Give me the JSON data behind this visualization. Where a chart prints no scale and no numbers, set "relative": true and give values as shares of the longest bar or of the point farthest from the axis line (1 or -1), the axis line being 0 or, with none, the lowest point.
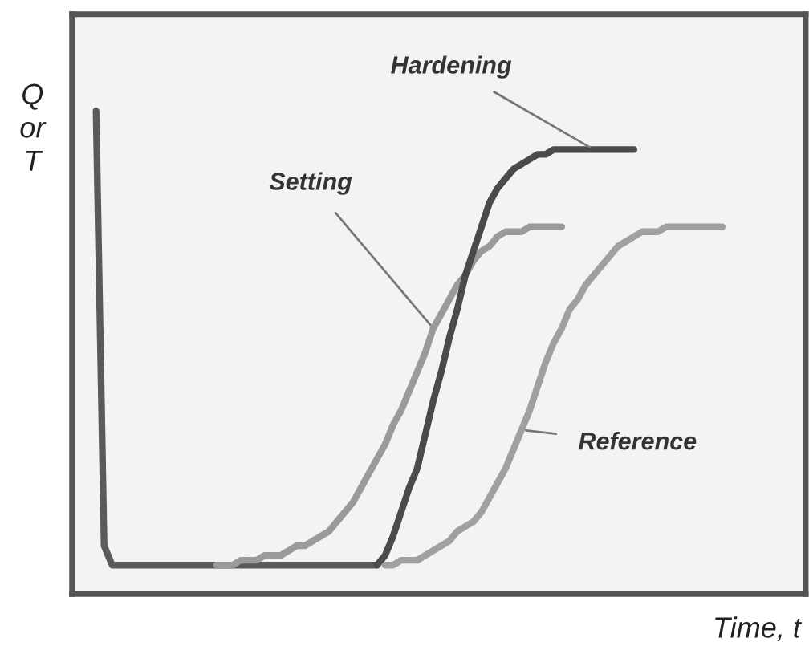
{
  "chart_data": {
    "type": "line",
    "relative": true,
    "xlabel": "Time, t",
    "ylabel": "Q\nor\nT",
    "categories": [
      null,
      null,
      null,
      null,
      null,
      null,
      null,
      null,
      null,
      null,
      null,
      null,
      null,
      null,
      null,
      null,
      null,
      null,
      null,
      null,
      null,
      null,
      null,
      null,
      null,
      null,
      null,
      null,
      null,
      null,
      null,
      null,
      null,
      null,
      null,
      null,
      null,
      null,
      null,
      null,
      null,
      null,
      null,
      null,
      null,
      null,
      null,
      null,
      null,
      null,
      null,
      null,
      null,
      null,
      null,
      null,
      null,
      null,
      null,
      null,
      null,
      null,
      null,
      null,
      null,
      null,
      null,
      null,
      null,
      null,
      null,
      null,
      null,
      null,
      null,
      null,
      null,
      null,
      null,
      null,
      null,
      null,
      null,
      null,
      null,
      null,
      null,
      null,
      null
    ],
    "series": [
      {
        "color": "#5a5a5a",
        "values": [
          1.0,
          0.1,
          0.06,
          0.06,
          0.06,
          0.06,
          0.06,
          0.06,
          0.06,
          0.06,
          0.06,
          0.06,
          0.06,
          0.06,
          0.06,
          0.06,
          0.06,
          0.06,
          0.06,
          0.06,
          0.06,
          0.06,
          0.06,
          0.06,
          0.06,
          0.06,
          0.06,
          0.06,
          0.06,
          0.06,
          0.06,
          0.06,
          0.06,
          0.06,
          0.06,
          0.06,
          null,
          null,
          null,
          null,
          null,
          null,
          null,
          null,
          null,
          null,
          null,
          null,
          null,
          null,
          null,
          null,
          null,
          null,
          null,
          null,
          null,
          null,
          null,
          null,
          null,
          null,
          null,
          null,
          null,
          null,
          null,
          null,
          null,
          null,
          null,
          null,
          null,
          null,
          null,
          null,
          null,
          null,
          null,
          null,
          null,
          null,
          null,
          null,
          null,
          null,
          null,
          null,
          null
        ]
      },
      {
        "name": "Setting",
        "color": "#9a9a9a",
        "values": [
          null,
          null,
          null,
          null,
          null,
          null,
          null,
          null,
          null,
          null,
          null,
          null,
          null,
          null,
          null,
          0.06,
          0.06,
          0.06,
          0.07,
          0.07,
          0.07,
          0.08,
          0.08,
          0.08,
          0.09,
          0.1,
          0.1,
          0.11,
          0.12,
          0.13,
          0.15,
          0.17,
          0.19,
          0.22,
          0.25,
          0.28,
          0.31,
          0.35,
          0.38,
          0.42,
          0.46,
          0.5,
          0.55,
          0.58,
          0.61,
          0.64,
          0.66,
          0.69,
          0.71,
          0.72,
          0.74,
          0.75,
          0.75,
          0.75,
          0.76,
          0.76,
          0.76,
          0.76,
          0.76,
          null,
          null,
          null,
          null,
          null,
          null,
          null,
          null,
          null,
          null,
          null,
          null,
          null,
          null,
          null,
          null,
          null,
          null,
          null,
          null,
          null,
          null,
          null,
          null,
          null,
          null,
          null,
          null,
          null,
          null
        ]
      },
      {
        "name": "Hardening",
        "color": "#4a4a4a",
        "values": [
          null,
          null,
          null,
          null,
          null,
          null,
          null,
          null,
          null,
          null,
          null,
          null,
          null,
          null,
          null,
          null,
          null,
          null,
          null,
          null,
          null,
          null,
          null,
          null,
          null,
          null,
          null,
          null,
          null,
          null,
          null,
          null,
          null,
          null,
          null,
          0.06,
          0.08,
          0.12,
          0.17,
          0.22,
          0.26,
          0.33,
          0.4,
          0.46,
          0.53,
          0.59,
          0.66,
          0.71,
          0.76,
          0.81,
          0.84,
          0.86,
          0.88,
          0.89,
          0.9,
          0.91,
          0.91,
          0.92,
          0.92,
          0.92,
          0.92,
          0.92,
          0.92,
          0.92,
          0.92,
          0.92,
          0.92,
          0.92,
          null,
          null,
          null,
          null,
          null,
          null,
          null,
          null,
          null,
          null,
          null,
          null,
          null,
          null,
          null,
          null,
          null,
          null,
          null,
          null,
          null
        ]
      },
      {
        "name": "Reference",
        "color": "#a0a0a0",
        "values": [
          null,
          null,
          null,
          null,
          null,
          null,
          null,
          null,
          null,
          null,
          null,
          null,
          null,
          null,
          null,
          null,
          null,
          null,
          null,
          null,
          null,
          null,
          null,
          null,
          null,
          null,
          null,
          null,
          null,
          null,
          null,
          null,
          null,
          null,
          null,
          null,
          0.06,
          0.06,
          0.07,
          0.07,
          0.07,
          0.08,
          0.09,
          0.1,
          0.11,
          0.13,
          0.14,
          0.15,
          0.17,
          0.2,
          0.23,
          0.26,
          0.3,
          0.34,
          0.38,
          0.43,
          0.48,
          0.52,
          0.55,
          0.59,
          0.61,
          0.64,
          0.66,
          0.68,
          0.7,
          0.72,
          0.73,
          0.74,
          0.75,
          0.75,
          0.75,
          0.76,
          0.76,
          0.76,
          0.76,
          0.76,
          0.76,
          0.76,
          0.76,
          null,
          null,
          null,
          null,
          null,
          null,
          null,
          null,
          null,
          null
        ]
      }
    ],
    "line_style": "solid"
  }
}
